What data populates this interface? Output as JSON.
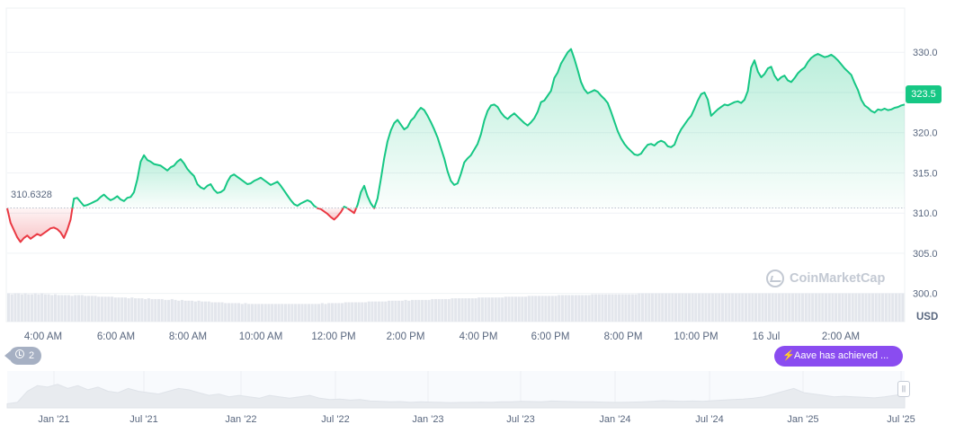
{
  "chart_data": {
    "type": "area",
    "title": "",
    "xlabel": "",
    "ylabel": "USD",
    "currency_label": "USD",
    "ylim": [
      296.5,
      335.5
    ],
    "y_ticks": [
      "300.0",
      "305.0",
      "310.0",
      "315.0",
      "320.0",
      "325.0",
      "330.0"
    ],
    "x_ticks": [
      "4:00 AM",
      "6:00 AM",
      "8:00 AM",
      "10:00 AM",
      "12:00 PM",
      "2:00 PM",
      "4:00 PM",
      "6:00 PM",
      "8:00 PM",
      "10:00 PM",
      "16 Jul",
      "2:00 AM"
    ],
    "baseline_value": 310.6328,
    "baseline_label": "310.6328",
    "current_price_label": "323.5",
    "grid": true,
    "colors": {
      "up": "#16c784",
      "down": "#ea3943",
      "tag": "#16c784",
      "event": "#8a4cf0",
      "volume": "#e3e6ec",
      "navigator": "#e8ebef"
    },
    "series": [
      {
        "values": [
          310.6,
          308.8,
          307.9,
          307.0,
          306.4,
          306.9,
          307.2,
          306.8,
          307.1,
          307.4,
          307.2,
          307.5,
          307.8,
          308.1,
          308.2,
          308.0,
          307.6,
          306.9,
          307.9,
          309.2,
          311.8,
          311.9,
          311.4,
          310.9,
          311.0,
          311.2,
          311.4,
          311.6,
          312.0,
          312.3,
          311.9,
          311.6,
          311.8,
          312.1,
          311.7,
          311.5,
          311.9,
          312.0,
          312.6,
          314.2,
          316.4,
          317.2,
          316.6,
          316.4,
          316.1,
          316.0,
          315.9,
          315.6,
          315.3,
          315.7,
          315.9,
          316.4,
          316.7,
          316.2,
          315.5,
          315.0,
          314.6,
          313.6,
          313.2,
          313.0,
          313.4,
          313.6,
          312.9,
          312.5,
          312.6,
          312.9,
          313.9,
          314.6,
          314.8,
          314.5,
          314.2,
          313.9,
          313.6,
          313.7,
          314.0,
          314.2,
          314.4,
          314.1,
          313.8,
          313.5,
          313.7,
          313.9,
          313.4,
          312.8,
          312.2,
          311.6,
          311.1,
          310.9,
          311.2,
          311.4,
          311.6,
          311.4,
          310.9,
          310.6,
          310.5,
          310.2,
          309.9,
          309.5,
          309.2,
          309.6,
          310.1,
          310.8,
          310.6,
          310.3,
          310.0,
          311.0,
          312.6,
          313.4,
          312.1,
          311.2,
          310.6,
          311.8,
          314.2,
          316.8,
          318.9,
          320.3,
          321.2,
          321.6,
          321.0,
          320.4,
          320.7,
          321.5,
          321.9,
          322.6,
          323.1,
          322.8,
          322.1,
          321.3,
          320.4,
          319.4,
          318.1,
          316.8,
          315.2,
          314.0,
          313.5,
          313.7,
          314.9,
          316.3,
          316.8,
          317.2,
          317.9,
          318.6,
          319.8,
          321.5,
          322.7,
          323.4,
          323.5,
          323.2,
          322.5,
          322.0,
          321.7,
          322.1,
          322.4,
          322.0,
          321.6,
          321.2,
          320.9,
          321.3,
          321.8,
          322.6,
          323.8,
          324.0,
          324.6,
          325.2,
          326.8,
          327.5,
          328.6,
          329.3,
          330.0,
          330.4,
          329.2,
          327.8,
          326.3,
          325.4,
          324.9,
          325.1,
          325.3,
          325.1,
          324.6,
          324.2,
          323.7,
          322.6,
          321.4,
          320.2,
          319.3,
          318.6,
          318.1,
          317.7,
          317.3,
          317.2,
          317.4,
          318.0,
          318.5,
          318.6,
          318.4,
          318.8,
          319.0,
          318.8,
          318.3,
          318.2,
          318.5,
          319.6,
          320.4,
          321.0,
          321.6,
          322.1,
          323.0,
          324.0,
          324.8,
          325.0,
          324.1,
          322.1,
          322.5,
          322.9,
          323.2,
          323.5,
          323.4,
          323.6,
          323.8,
          323.9,
          323.7,
          324.1,
          325.2,
          328.1,
          329.0,
          327.6,
          326.9,
          327.3,
          328.0,
          328.2,
          327.1,
          326.5,
          326.9,
          327.1,
          326.5,
          326.3,
          326.8,
          327.4,
          327.8,
          328.1,
          328.8,
          329.3,
          329.6,
          329.8,
          329.6,
          329.4,
          329.5,
          329.7,
          329.4,
          329.0,
          328.5,
          328.0,
          327.6,
          327.2,
          326.2,
          325.3,
          324.1,
          323.4,
          323.1,
          322.7,
          322.5,
          322.9,
          322.8,
          323.0,
          322.8,
          322.9,
          323.1,
          323.2,
          323.4,
          323.5
        ]
      }
    ],
    "volume_values": [
      300.0,
      299.9,
      300.0,
      300.0,
      299.9,
      300.0,
      299.9,
      299.9,
      300.0,
      299.9,
      300.0,
      299.9,
      299.9,
      299.8,
      299.9,
      299.8,
      299.8,
      299.8,
      299.8,
      299.7,
      299.8,
      299.8,
      299.8,
      299.7,
      299.7,
      299.7,
      299.7,
      299.6,
      299.6,
      299.6,
      299.6,
      299.6,
      299.5,
      299.5,
      299.5,
      299.5,
      299.4,
      299.5,
      299.4,
      299.4,
      299.4,
      299.3,
      299.4,
      299.3,
      299.3,
      299.3,
      299.3,
      299.2,
      299.2,
      299.3,
      299.2,
      299.1,
      299.2,
      299.1,
      299.1,
      299.1,
      299.0,
      299.1,
      299.0,
      299.0,
      299.0,
      298.9,
      298.9,
      298.9,
      298.9,
      298.8,
      298.8,
      298.8,
      298.8,
      298.8,
      298.7,
      298.8,
      298.7,
      298.7,
      298.7,
      298.7,
      298.7,
      298.7,
      298.7,
      298.7,
      298.7,
      298.7,
      298.7,
      298.7,
      298.7,
      298.7,
      298.7,
      298.7,
      298.7,
      298.7,
      298.7,
      298.7,
      298.7,
      298.7,
      298.8,
      298.7,
      298.8,
      298.8,
      298.8,
      298.8,
      298.8,
      298.9,
      298.9,
      298.9,
      298.9,
      298.9,
      298.9,
      298.9,
      299.0,
      299.0,
      299.0,
      299.0,
      299.0,
      299.0,
      299.1,
      299.1,
      299.1,
      299.1,
      299.1,
      299.2,
      299.1,
      299.2,
      299.2,
      299.2,
      299.2,
      299.2,
      299.2,
      299.3,
      299.3,
      299.3,
      299.3,
      299.3,
      299.3,
      299.4,
      299.4,
      299.4,
      299.4,
      299.4,
      299.4,
      299.4,
      299.4,
      299.5,
      299.5,
      299.5,
      299.5,
      299.5,
      299.5,
      299.5,
      299.5,
      299.6,
      299.6,
      299.6,
      299.6,
      299.6,
      299.6,
      299.6,
      299.7,
      299.7,
      299.7,
      299.7,
      299.7,
      299.7,
      299.7,
      299.7,
      299.7,
      299.8,
      299.8,
      299.8,
      299.8,
      299.8,
      299.8,
      299.8,
      299.8,
      299.8,
      299.8,
      299.9,
      299.9,
      299.9,
      299.9,
      299.9,
      299.9,
      299.9,
      299.9,
      299.9,
      299.9,
      299.9,
      299.9,
      299.9,
      299.9,
      300.0,
      300.0,
      300.0,
      300.0,
      300.0,
      300.0,
      300.0,
      300.0,
      300.0,
      300.0,
      300.0,
      300.0,
      300.0,
      300.0,
      300.0,
      300.0,
      300.0,
      300.0,
      300.0,
      300.0,
      300.0,
      300.0,
      300.0,
      300.0,
      300.0,
      300.0,
      300.0,
      300.0,
      300.0,
      300.0,
      300.0,
      300.0,
      300.0,
      300.0,
      300.0,
      300.0,
      300.0,
      300.0,
      300.0,
      300.0,
      300.0,
      300.0,
      300.0,
      300.0,
      300.0,
      300.0,
      300.0,
      300.0,
      300.0,
      300.0,
      300.0,
      300.0,
      300.0,
      300.0,
      300.0,
      300.0,
      300.0,
      300.0,
      300.0,
      300.0,
      300.0,
      300.0,
      300.0,
      300.0,
      300.0,
      300.0,
      300.0,
      300.0,
      300.0,
      300.0,
      300.0,
      300.0,
      300.0,
      300.0,
      300.0,
      300.0,
      300.0,
      300.0,
      300.0,
      300.0
    ],
    "navigator": {
      "x_ticks": [
        "Jan '21",
        "Jul '21",
        "Jan '22",
        "Jul '22",
        "Jan '23",
        "Jul '23",
        "Jan '24",
        "Jul '24",
        "Jan '25",
        "Jul '25"
      ],
      "values": [
        0.05,
        0.1,
        0.5,
        0.7,
        0.65,
        0.75,
        0.6,
        0.7,
        0.55,
        0.65,
        0.5,
        0.45,
        0.6,
        0.5,
        0.45,
        0.4,
        0.5,
        0.6,
        0.55,
        0.45,
        0.35,
        0.4,
        0.3,
        0.35,
        0.3,
        0.25,
        0.35,
        0.3,
        0.25,
        0.3,
        0.35,
        0.25,
        0.2,
        0.22,
        0.18,
        0.2,
        0.15,
        0.14,
        0.12,
        0.13,
        0.1,
        0.12,
        0.11,
        0.1,
        0.09,
        0.1,
        0.1,
        0.11,
        0.1,
        0.12,
        0.12,
        0.14,
        0.13,
        0.12,
        0.15,
        0.14,
        0.13,
        0.12,
        0.12,
        0.11,
        0.1,
        0.1,
        0.11,
        0.12,
        0.14,
        0.16,
        0.15,
        0.14,
        0.15,
        0.14,
        0.16,
        0.18,
        0.2,
        0.22,
        0.25,
        0.3,
        0.4,
        0.5,
        0.6,
        0.45,
        0.4,
        0.35,
        0.3,
        0.32,
        0.3,
        0.28,
        0.26,
        0.3,
        0.35,
        0.4
      ]
    }
  },
  "ui": {
    "event_label": "Aave has achieved ...",
    "event_count": "2",
    "watermark": "CoinMarketCap",
    "handle_glyph": "||"
  }
}
